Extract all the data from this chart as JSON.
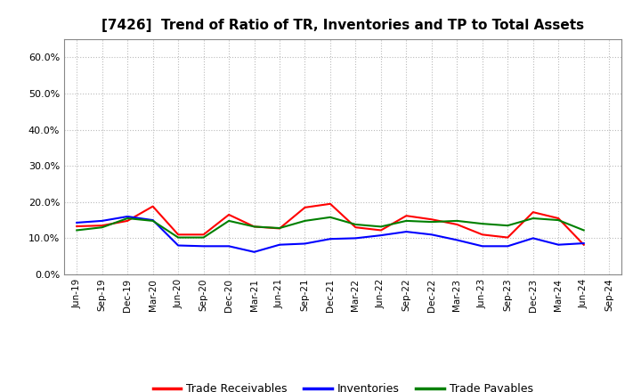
{
  "title": "[7426]  Trend of Ratio of TR, Inventories and TP to Total Assets",
  "x_labels": [
    "Jun-19",
    "Sep-19",
    "Dec-19",
    "Mar-20",
    "Jun-20",
    "Sep-20",
    "Dec-20",
    "Mar-21",
    "Jun-21",
    "Sep-21",
    "Dec-21",
    "Mar-22",
    "Jun-22",
    "Sep-22",
    "Dec-22",
    "Mar-23",
    "Jun-23",
    "Sep-23",
    "Dec-23",
    "Mar-24",
    "Jun-24",
    "Sep-24"
  ],
  "trade_receivables": [
    0.133,
    0.135,
    0.148,
    0.188,
    0.11,
    0.11,
    0.165,
    0.132,
    0.127,
    0.185,
    0.195,
    0.13,
    0.122,
    0.162,
    0.152,
    0.138,
    0.11,
    0.102,
    0.172,
    0.155,
    0.082,
    null
  ],
  "inventories": [
    0.143,
    0.148,
    0.16,
    0.15,
    0.08,
    0.078,
    0.078,
    0.062,
    0.082,
    0.085,
    0.098,
    0.1,
    0.108,
    0.118,
    0.11,
    0.095,
    0.078,
    0.078,
    0.1,
    0.082,
    0.086,
    null
  ],
  "trade_payables": [
    0.122,
    0.13,
    0.155,
    0.148,
    0.102,
    0.102,
    0.148,
    0.132,
    0.128,
    0.148,
    0.158,
    0.138,
    0.132,
    0.148,
    0.145,
    0.148,
    0.14,
    0.135,
    0.155,
    0.15,
    0.122,
    null
  ],
  "ylim": [
    0.0,
    0.65
  ],
  "yticks": [
    0.0,
    0.1,
    0.2,
    0.3,
    0.4,
    0.5,
    0.6
  ],
  "color_tr": "#FF0000",
  "color_inv": "#0000FF",
  "color_tp": "#008000",
  "legend_labels": [
    "Trade Receivables",
    "Inventories",
    "Trade Payables"
  ],
  "background_color": "#FFFFFF",
  "grid_color": "#BBBBBB"
}
